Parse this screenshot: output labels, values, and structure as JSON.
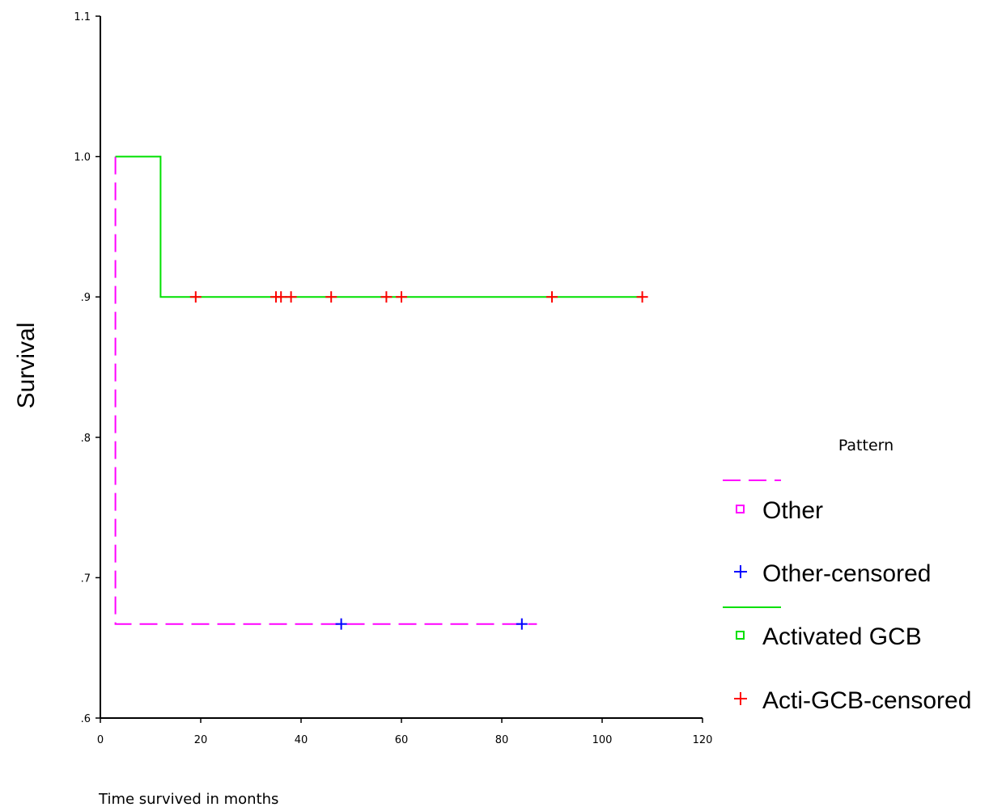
{
  "chart_data": {
    "type": "line",
    "title": "",
    "xlabel": "Time survived in months",
    "ylabel": "Survival",
    "xlim": [
      0,
      120
    ],
    "ylim": [
      0.6,
      1.1
    ],
    "x_ticks": [
      0,
      20,
      40,
      60,
      80,
      100,
      120
    ],
    "x_tick_labels": [
      "0",
      "20",
      "40",
      "60",
      "80",
      "100",
      "120"
    ],
    "y_ticks": [
      0.6,
      0.7,
      0.8,
      0.9,
      1.0,
      1.1
    ],
    "y_tick_labels": [
      ".6",
      ".7",
      ".8",
      ".9",
      "1.0",
      "1.1"
    ],
    "grid": false,
    "legend": {
      "title": "Pattern",
      "position": "right",
      "entries": [
        "Other",
        "Other-censored",
        "Activated GCB",
        "Acti-GCB-censored"
      ]
    },
    "series": [
      {
        "name": "Other",
        "style": "step-dashed",
        "color": "#ff00ff",
        "x": [
          3,
          3,
          87
        ],
        "y": [
          1.0,
          0.667,
          0.667
        ]
      },
      {
        "name": "Other-censored",
        "style": "marker-plus",
        "color": "#0000ff",
        "x": [
          48,
          84
        ],
        "y": [
          0.667,
          0.667
        ]
      },
      {
        "name": "Activated GCB",
        "style": "step",
        "color": "#00e000",
        "x": [
          3,
          12,
          12,
          108
        ],
        "y": [
          1.0,
          1.0,
          0.9,
          0.9
        ]
      },
      {
        "name": "Acti-GCB-censored",
        "style": "marker-plus",
        "color": "#ff0000",
        "x": [
          19,
          35,
          36,
          38,
          46,
          57,
          60,
          90,
          108
        ],
        "y": [
          0.9,
          0.9,
          0.9,
          0.9,
          0.9,
          0.9,
          0.9,
          0.9,
          0.9
        ]
      }
    ]
  }
}
